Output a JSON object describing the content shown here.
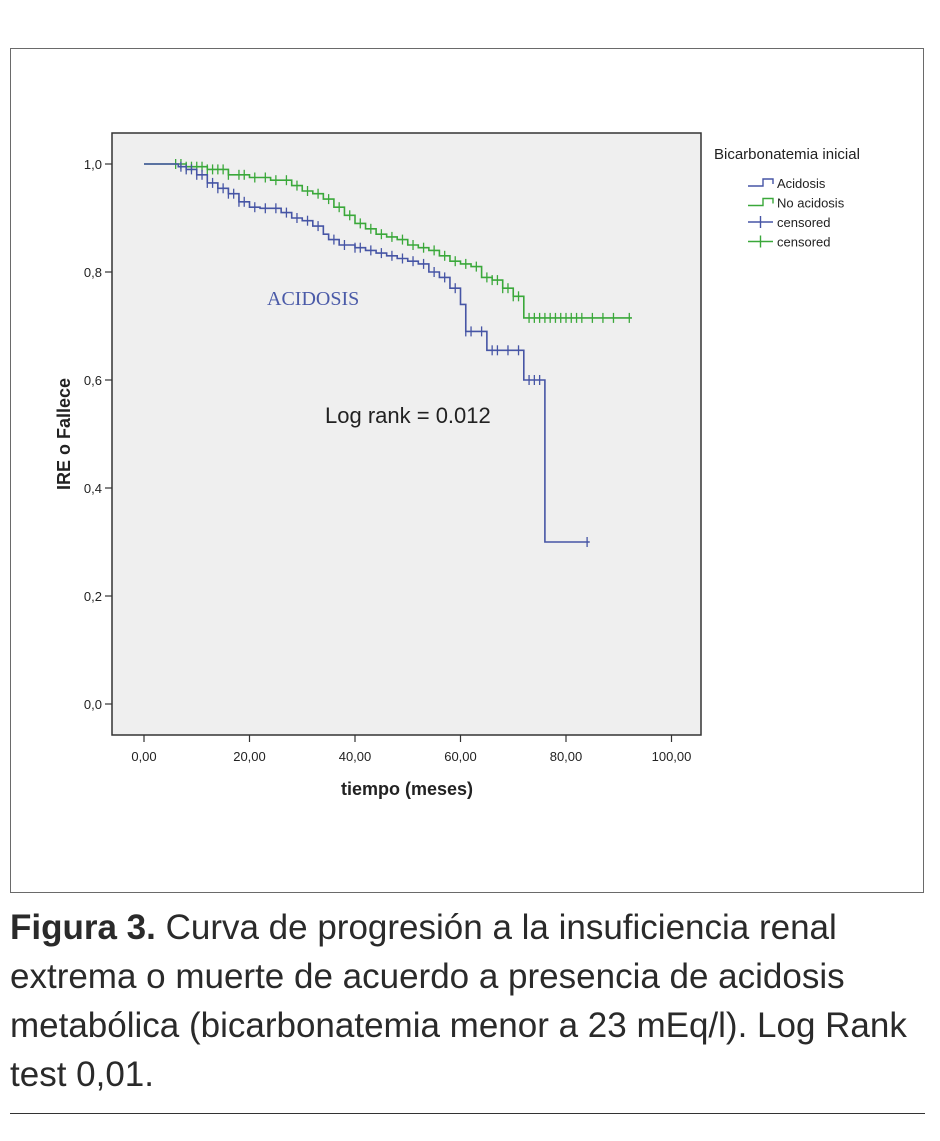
{
  "caption": {
    "label": "Figura 3.",
    "text": " Curva de progresión a la insuficiencia renal extrema o muerte de acuerdo a presencia de acidosis metabólica (bicarbonatemia menor a 23 mEq/l). Log Rank test 0,01."
  },
  "chart_data": {
    "type": "line",
    "title": "",
    "xlabel": "tiempo (meses)",
    "ylabel": "IRE o Fallece",
    "xlim": [
      0,
      100
    ],
    "ylim": [
      0,
      1
    ],
    "x_ticks": [
      "0,00",
      "20,00",
      "40,00",
      "60,00",
      "80,00",
      "100,00"
    ],
    "y_ticks": [
      "0,0",
      "0,2",
      "0,4",
      "0,6",
      "0,8",
      "1,0"
    ],
    "grid": false,
    "legend": {
      "title": "Bicarbonatemia inicial",
      "position": "right",
      "entries": [
        "Acidosis",
        "No acidosis",
        "censored",
        "censored"
      ]
    },
    "annotations": {
      "series_label": "ACIDOSIS",
      "log_rank": "Log rank = 0.012"
    },
    "colors": {
      "acidosis": "#4655a5",
      "no_acidosis": "#3aa83a",
      "plot_bg": "#efefef"
    },
    "series": [
      {
        "name": "Acidosis",
        "steps": [
          [
            0,
            1.0
          ],
          [
            6,
            1.0
          ],
          [
            6.5,
            0.995
          ],
          [
            8,
            0.99
          ],
          [
            10,
            0.98
          ],
          [
            12,
            0.965
          ],
          [
            14,
            0.955
          ],
          [
            16,
            0.945
          ],
          [
            18,
            0.93
          ],
          [
            20,
            0.92
          ],
          [
            22,
            0.918
          ],
          [
            26,
            0.91
          ],
          [
            28,
            0.9
          ],
          [
            30,
            0.895
          ],
          [
            32,
            0.885
          ],
          [
            34,
            0.87
          ],
          [
            35,
            0.86
          ],
          [
            37,
            0.85
          ],
          [
            40,
            0.845
          ],
          [
            42,
            0.84
          ],
          [
            44,
            0.835
          ],
          [
            46,
            0.83
          ],
          [
            48,
            0.825
          ],
          [
            50,
            0.82
          ],
          [
            52,
            0.815
          ],
          [
            54,
            0.8
          ],
          [
            56,
            0.79
          ],
          [
            58,
            0.77
          ],
          [
            60,
            0.74
          ],
          [
            61,
            0.69
          ],
          [
            65,
            0.655
          ],
          [
            72,
            0.6
          ],
          [
            76,
            0.3
          ],
          [
            84.5,
            0.3
          ]
        ],
        "censored_x": [
          7,
          8,
          9,
          10,
          11,
          12,
          13,
          14,
          15,
          16,
          17,
          18,
          19,
          21,
          23,
          25,
          27,
          29,
          31,
          33,
          36,
          38,
          40,
          41,
          43,
          45,
          47,
          49,
          51,
          53,
          55,
          57,
          59,
          61,
          62,
          64,
          66,
          67,
          69,
          71,
          73,
          74,
          75,
          84
        ]
      },
      {
        "name": "No acidosis",
        "steps": [
          [
            0,
            1.0
          ],
          [
            6,
            1.0
          ],
          [
            8,
            0.995
          ],
          [
            12,
            0.99
          ],
          [
            16,
            0.98
          ],
          [
            20,
            0.975
          ],
          [
            24,
            0.97
          ],
          [
            28,
            0.96
          ],
          [
            30,
            0.95
          ],
          [
            32,
            0.945
          ],
          [
            34,
            0.935
          ],
          [
            36,
            0.92
          ],
          [
            38,
            0.905
          ],
          [
            40,
            0.89
          ],
          [
            42,
            0.88
          ],
          [
            44,
            0.87
          ],
          [
            46,
            0.865
          ],
          [
            48,
            0.86
          ],
          [
            50,
            0.85
          ],
          [
            52,
            0.845
          ],
          [
            54,
            0.84
          ],
          [
            56,
            0.83
          ],
          [
            58,
            0.82
          ],
          [
            60,
            0.815
          ],
          [
            62,
            0.81
          ],
          [
            64,
            0.79
          ],
          [
            66,
            0.785
          ],
          [
            68,
            0.77
          ],
          [
            70,
            0.755
          ],
          [
            72,
            0.715
          ],
          [
            92.5,
            0.715
          ]
        ],
        "censored_x": [
          6,
          7,
          8,
          9,
          10,
          11,
          12,
          13,
          14,
          15,
          16,
          18,
          19,
          21,
          23,
          25,
          27,
          29,
          31,
          33,
          35,
          37,
          39,
          41,
          43,
          45,
          47,
          49,
          51,
          53,
          55,
          57,
          59,
          61,
          63,
          65,
          66,
          67,
          68,
          69,
          70,
          71,
          73,
          74,
          75,
          76,
          77,
          78,
          79,
          80,
          81,
          82,
          83,
          85,
          87,
          89,
          92
        ]
      }
    ]
  }
}
